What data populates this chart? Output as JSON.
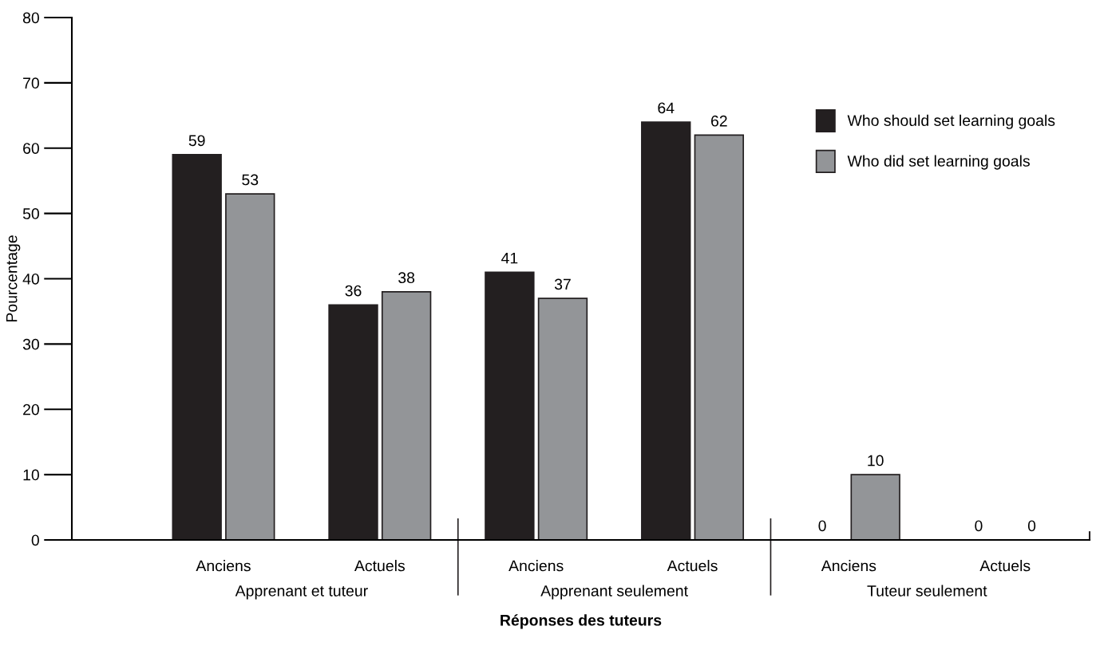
{
  "chart_data": {
    "type": "bar",
    "xlabel": "Réponses des tuteurs",
    "ylabel": "Pourcentage",
    "categories": [
      "Anciens",
      "Actuels",
      "Anciens",
      "Actuels",
      "Anciens",
      "Actuels"
    ],
    "series": [
      {
        "name": "Who should set learning goals",
        "color": "#231f20",
        "values": [
          59,
          36,
          41,
          64,
          0,
          0
        ]
      },
      {
        "name": "Who did set learning goals",
        "color": "#939598",
        "values": [
          53,
          38,
          37,
          62,
          10,
          0
        ]
      }
    ],
    "annotations": [
      "Apprenant et tuteur",
      "Apprenant seulement",
      "Tuteur seulement"
    ],
    "ylim": [
      0,
      80
    ],
    "yticks": [
      0,
      10,
      20,
      30,
      40,
      50,
      60,
      70,
      80
    ],
    "data_labels": true,
    "legend": "top right",
    "grid": false
  }
}
